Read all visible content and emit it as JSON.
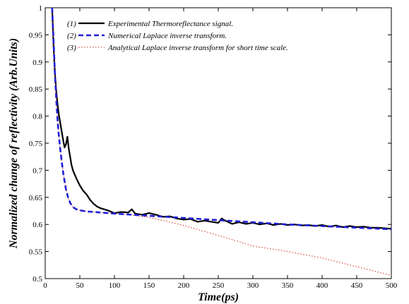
{
  "chart_data": {
    "type": "line",
    "title": "",
    "xlabel": "Time(ps)",
    "ylabel": "Normalized change of reflectivity (Arb.Units)",
    "xlim": [
      0,
      500
    ],
    "ylim": [
      0.5,
      1
    ],
    "xticks": [
      "0",
      "50",
      "100",
      "150",
      "200",
      "250",
      "300",
      "350",
      "400",
      "450",
      "500"
    ],
    "yticks": [
      "0.5",
      "0.55",
      "0.6",
      "0.65",
      "0.7",
      "0.75",
      "0.8",
      "0.85",
      "0.9",
      "0.95",
      "1"
    ],
    "grid": false,
    "legend_position": "top-left",
    "series": [
      {
        "name": "Experimental Thermoreflectance signal.",
        "index_label": "(1)",
        "color": "#000000",
        "style": "solid",
        "x": [
          10,
          12,
          14,
          16,
          18,
          20,
          22,
          24,
          26,
          28,
          30,
          32,
          34,
          36,
          38,
          40,
          45,
          50,
          55,
          60,
          65,
          70,
          75,
          80,
          90,
          100,
          110,
          120,
          125,
          130,
          140,
          150,
          160,
          170,
          180,
          190,
          200,
          210,
          220,
          230,
          240,
          250,
          255,
          260,
          270,
          280,
          290,
          300,
          310,
          320,
          330,
          340,
          350,
          360,
          370,
          380,
          390,
          400,
          410,
          420,
          430,
          440,
          450,
          460,
          470,
          480,
          490,
          500
        ],
        "y": [
          1.0,
          0.93,
          0.88,
          0.845,
          0.82,
          0.8,
          0.785,
          0.77,
          0.755,
          0.742,
          0.748,
          0.762,
          0.74,
          0.725,
          0.71,
          0.7,
          0.685,
          0.672,
          0.662,
          0.655,
          0.645,
          0.638,
          0.633,
          0.63,
          0.626,
          0.621,
          0.623,
          0.622,
          0.628,
          0.62,
          0.618,
          0.621,
          0.618,
          0.614,
          0.615,
          0.611,
          0.609,
          0.61,
          0.605,
          0.607,
          0.605,
          0.603,
          0.611,
          0.607,
          0.601,
          0.604,
          0.601,
          0.603,
          0.6,
          0.602,
          0.599,
          0.601,
          0.599,
          0.6,
          0.598,
          0.599,
          0.597,
          0.599,
          0.596,
          0.598,
          0.595,
          0.597,
          0.595,
          0.596,
          0.594,
          0.594,
          0.593,
          0.592
        ]
      },
      {
        "name": "Numerical Laplace inverse transform.",
        "index_label": "(2)",
        "color": "#1f1fd6",
        "style": "dashed",
        "x": [
          10,
          12,
          14,
          16,
          18,
          20,
          22,
          24,
          26,
          28,
          30,
          33,
          36,
          40,
          45,
          50,
          60,
          70,
          80,
          100,
          125,
          150,
          175,
          200,
          250,
          300,
          350,
          400,
          450,
          500
        ],
        "y": [
          1.0,
          0.94,
          0.88,
          0.83,
          0.79,
          0.76,
          0.735,
          0.715,
          0.695,
          0.68,
          0.665,
          0.65,
          0.64,
          0.632,
          0.628,
          0.626,
          0.624,
          0.623,
          0.622,
          0.62,
          0.618,
          0.616,
          0.614,
          0.612,
          0.608,
          0.604,
          0.6,
          0.597,
          0.594,
          0.591
        ]
      },
      {
        "name": "Analytical Laplace inverse transform for short time scale.",
        "index_label": "(3)",
        "color": "#d9534f",
        "style": "dotted",
        "x": [
          10,
          12,
          14,
          16,
          18,
          20,
          22,
          24,
          26,
          28,
          30,
          33,
          36,
          40,
          45,
          50,
          60,
          70,
          80,
          100,
          125,
          150,
          175,
          200,
          250,
          300,
          350,
          400,
          450,
          500
        ],
        "y": [
          1.0,
          0.94,
          0.88,
          0.83,
          0.79,
          0.76,
          0.735,
          0.715,
          0.695,
          0.68,
          0.665,
          0.65,
          0.64,
          0.632,
          0.628,
          0.626,
          0.624,
          0.623,
          0.622,
          0.62,
          0.617,
          0.613,
          0.606,
          0.598,
          0.58,
          0.56,
          0.55,
          0.538,
          0.522,
          0.506
        ]
      }
    ]
  }
}
